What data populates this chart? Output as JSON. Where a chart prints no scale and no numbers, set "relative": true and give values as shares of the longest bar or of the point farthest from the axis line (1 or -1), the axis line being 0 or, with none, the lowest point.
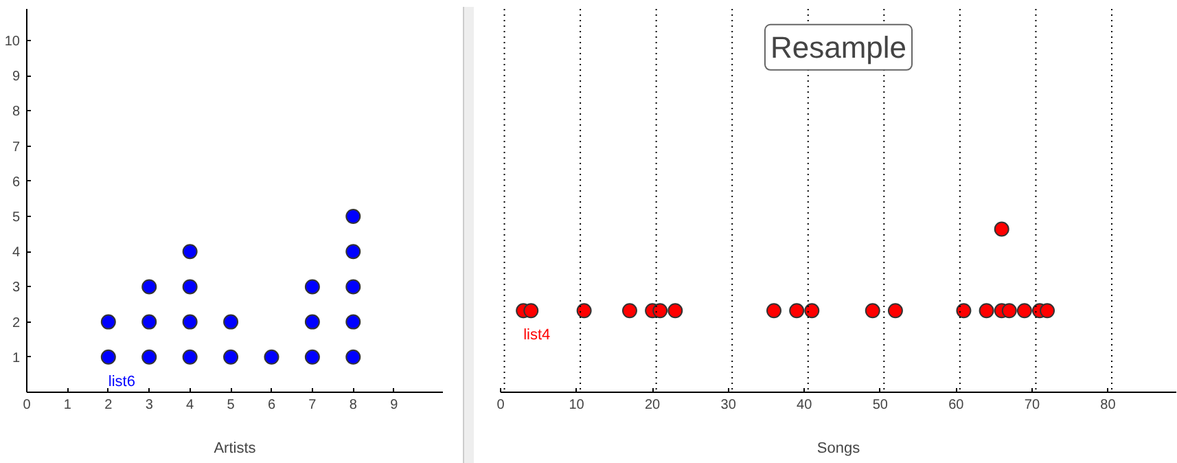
{
  "chart_data": [
    {
      "type": "scatter",
      "xlabel": "Artists",
      "marker": "circle",
      "xlim": [
        0,
        10.2
      ],
      "ylim": [
        0,
        10.9
      ],
      "xticks": [
        0,
        1,
        2,
        3,
        4,
        5,
        6,
        7,
        8,
        9
      ],
      "yticks": [
        1,
        2,
        3,
        4,
        5,
        6,
        7,
        8,
        9,
        10
      ],
      "series": [
        {
          "name": "list6",
          "color": "#0000ff",
          "x": [
            2,
            2,
            3,
            3,
            3,
            4,
            4,
            4,
            4,
            5,
            5,
            6,
            7,
            7,
            7,
            8,
            8,
            8,
            8,
            8
          ],
          "values": [
            1,
            2,
            1,
            2,
            3,
            1,
            2,
            3,
            4,
            1,
            2,
            1,
            1,
            2,
            3,
            1,
            2,
            3,
            4,
            5
          ]
        }
      ]
    },
    {
      "type": "scatter",
      "title": "Resample",
      "xlabel": "Songs",
      "marker": "circle",
      "relative": true,
      "tick_labels": "x",
      "xlim": [
        0,
        89
      ],
      "xticks": [
        0,
        10,
        20,
        30,
        40,
        50,
        60,
        70,
        80
      ],
      "ref_lines": [
        {
          "axis": "x",
          "value": 0.5,
          "line_style": "dotted"
        },
        {
          "axis": "x",
          "value": 10.5,
          "line_style": "dotted"
        },
        {
          "axis": "x",
          "value": 20.5,
          "line_style": "dotted"
        },
        {
          "axis": "x",
          "value": 30.5,
          "line_style": "dotted"
        },
        {
          "axis": "x",
          "value": 40.5,
          "line_style": "dotted"
        },
        {
          "axis": "x",
          "value": 50.5,
          "line_style": "dotted"
        },
        {
          "axis": "x",
          "value": 60.5,
          "line_style": "dotted"
        },
        {
          "axis": "x",
          "value": 70.5,
          "line_style": "dotted"
        },
        {
          "axis": "x",
          "value": 80.5,
          "line_style": "dotted"
        }
      ],
      "series": [
        {
          "name": "list4",
          "color": "#ff0000",
          "x": [
            3,
            4,
            11,
            17,
            20,
            21,
            23,
            36,
            39,
            41,
            49,
            52,
            61,
            64,
            66,
            67,
            69,
            71,
            72,
            66
          ],
          "values": [
            0.5,
            0.5,
            0.5,
            0.5,
            0.5,
            0.5,
            0.5,
            0.5,
            0.5,
            0.5,
            0.5,
            0.5,
            0.5,
            0.5,
            0.5,
            0.5,
            0.5,
            0.5,
            0.5,
            1
          ]
        }
      ]
    }
  ]
}
